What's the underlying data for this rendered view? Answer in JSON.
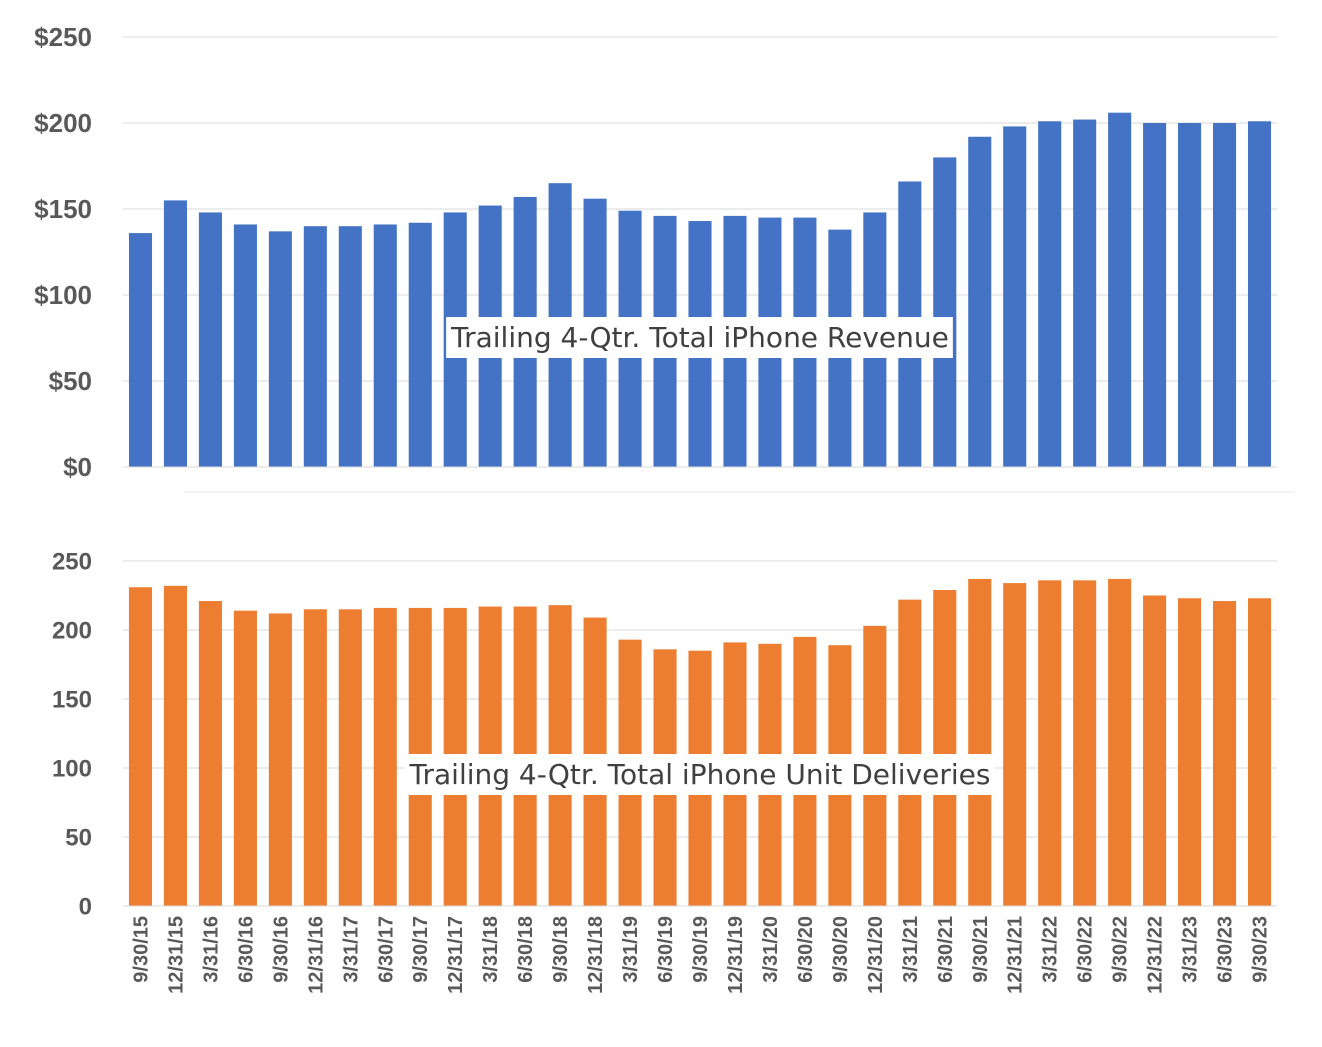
{
  "chart_data": [
    {
      "type": "bar",
      "annotation": "Trailing 4-Qtr. Total iPhone Revenue",
      "categories": [
        "9/30/15",
        "12/31/15",
        "3/31/16",
        "6/30/16",
        "9/30/16",
        "12/31/16",
        "3/31/17",
        "6/30/17",
        "9/30/17",
        "12/31/17",
        "3/31/18",
        "6/30/18",
        "9/30/18",
        "12/31/18",
        "3/31/19",
        "6/30/19",
        "9/30/19",
        "12/31/19",
        "3/31/20",
        "6/30/20",
        "9/30/20",
        "12/31/20",
        "3/31/21",
        "6/30/21",
        "9/30/21",
        "12/31/21",
        "3/31/22",
        "6/30/22",
        "9/30/22",
        "12/31/22",
        "3/31/23",
        "6/30/23",
        "9/30/23"
      ],
      "values": [
        136,
        155,
        148,
        141,
        137,
        140,
        140,
        141,
        142,
        148,
        152,
        157,
        165,
        156,
        149,
        146,
        143,
        146,
        145,
        145,
        138,
        148,
        166,
        180,
        192,
        198,
        201,
        202,
        206,
        200,
        200,
        200,
        201
      ],
      "ylim": [
        0,
        250
      ],
      "yticks": [
        0,
        50,
        100,
        150,
        200,
        250
      ],
      "ytick_labels": [
        "$0",
        "$50",
        "$100",
        "$150",
        "$200",
        "$250"
      ],
      "grid": true,
      "color": "#4472c4"
    },
    {
      "type": "bar",
      "annotation": "Trailing 4-Qtr. Total iPhone Unit Deliveries",
      "categories": [
        "9/30/15",
        "12/31/15",
        "3/31/16",
        "6/30/16",
        "9/30/16",
        "12/31/16",
        "3/31/17",
        "6/30/17",
        "9/30/17",
        "12/31/17",
        "3/31/18",
        "6/30/18",
        "9/30/18",
        "12/31/18",
        "3/31/19",
        "6/30/19",
        "9/30/19",
        "12/31/19",
        "3/31/20",
        "6/30/20",
        "9/30/20",
        "12/31/20",
        "3/31/21",
        "6/30/21",
        "9/30/21",
        "12/31/21",
        "3/31/22",
        "6/30/22",
        "9/30/22",
        "12/31/22",
        "3/31/23",
        "6/30/23",
        "9/30/23"
      ],
      "values": [
        231,
        232,
        221,
        214,
        212,
        215,
        215,
        216,
        216,
        216,
        217,
        217,
        218,
        209,
        193,
        186,
        185,
        191,
        190,
        195,
        189,
        203,
        222,
        229,
        237,
        234,
        236,
        236,
        237,
        225,
        223,
        221,
        223
      ],
      "ylim": [
        0,
        250
      ],
      "yticks": [
        0,
        50,
        100,
        150,
        200,
        250
      ],
      "ytick_labels": [
        "0",
        "50",
        "100",
        "150",
        "200",
        "250"
      ],
      "grid": true,
      "color": "#ed7d31"
    }
  ]
}
